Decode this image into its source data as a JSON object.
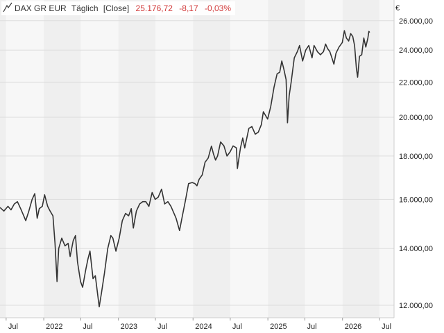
{
  "legend": {
    "name": "DAX GR EUR",
    "interval": "Täglich",
    "mode": "[Close]",
    "last": "25.176,72",
    "change": "-8,17",
    "change_pct": "-0,03%"
  },
  "colors": {
    "line": "#333333",
    "negative": "#d23b3b",
    "band_light": "#f7f7f7",
    "band_dark": "#efefef",
    "grid": "#dddddd"
  },
  "chart_data": {
    "type": "line",
    "title": "",
    "xlabel": "",
    "ylabel": "€",
    "y_scale": "log",
    "ylim": [
      11600,
      27500
    ],
    "xlim": [
      "2021-06-01",
      "2026-09-10"
    ],
    "yticks": [
      12000,
      14000,
      16000,
      18000,
      20000,
      22000,
      24000,
      26000
    ],
    "ytick_labels": [
      "12.000,00",
      "14.000,00",
      "16.000,00",
      "18.000,00",
      "20.000,00",
      "22.000,00",
      "24.000,00",
      "26.000,00"
    ],
    "xticks": [
      {
        "date": "2021-07-01",
        "label": "Jul"
      },
      {
        "date": "2022-01-01",
        "label": "2022"
      },
      {
        "date": "2022-07-01",
        "label": "Jul"
      },
      {
        "date": "2023-01-01",
        "label": "2023"
      },
      {
        "date": "2023-07-01",
        "label": "Jul"
      },
      {
        "date": "2024-01-01",
        "label": "2024"
      },
      {
        "date": "2024-07-01",
        "label": "Jul"
      },
      {
        "date": "2025-01-01",
        "label": "2025"
      },
      {
        "date": "2025-07-01",
        "label": "Jul"
      },
      {
        "date": "2026-01-01",
        "label": "2026"
      },
      {
        "date": "2026-07-01",
        "label": "Jul"
      }
    ],
    "series": [
      {
        "values": [
          [
            "2021-06-01",
            15650
          ],
          [
            "2021-06-20",
            15500
          ],
          [
            "2021-07-10",
            15700
          ],
          [
            "2021-07-25",
            15550
          ],
          [
            "2021-08-10",
            15800
          ],
          [
            "2021-08-25",
            15900
          ],
          [
            "2021-09-10",
            15600
          ],
          [
            "2021-09-25",
            15300
          ],
          [
            "2021-10-05",
            15100
          ],
          [
            "2021-10-20",
            15500
          ],
          [
            "2021-11-05",
            16000
          ],
          [
            "2021-11-18",
            16250
          ],
          [
            "2021-11-30",
            15200
          ],
          [
            "2021-12-10",
            15600
          ],
          [
            "2021-12-25",
            15700
          ],
          [
            "2022-01-05",
            16200
          ],
          [
            "2022-01-20",
            15700
          ],
          [
            "2022-02-01",
            15500
          ],
          [
            "2022-02-15",
            15300
          ],
          [
            "2022-02-25",
            14200
          ],
          [
            "2022-03-07",
            12800
          ],
          [
            "2022-03-15",
            14000
          ],
          [
            "2022-03-30",
            14400
          ],
          [
            "2022-04-15",
            14100
          ],
          [
            "2022-04-30",
            14200
          ],
          [
            "2022-05-10",
            13700
          ],
          [
            "2022-05-25",
            14300
          ],
          [
            "2022-06-05",
            14500
          ],
          [
            "2022-06-15",
            13500
          ],
          [
            "2022-06-30",
            12800
          ],
          [
            "2022-07-10",
            12600
          ],
          [
            "2022-07-25",
            13200
          ],
          [
            "2022-08-05",
            13600
          ],
          [
            "2022-08-15",
            13900
          ],
          [
            "2022-08-30",
            12900
          ],
          [
            "2022-09-10",
            13000
          ],
          [
            "2022-09-29",
            11950
          ],
          [
            "2022-10-10",
            12400
          ],
          [
            "2022-10-25",
            13100
          ],
          [
            "2022-11-10",
            14000
          ],
          [
            "2022-11-25",
            14500
          ],
          [
            "2022-12-05",
            14400
          ],
          [
            "2022-12-20",
            13900
          ],
          [
            "2023-01-05",
            14400
          ],
          [
            "2023-01-20",
            15100
          ],
          [
            "2023-02-05",
            15400
          ],
          [
            "2023-02-20",
            15300
          ],
          [
            "2023-03-05",
            15600
          ],
          [
            "2023-03-15",
            14800
          ],
          [
            "2023-03-30",
            15500
          ],
          [
            "2023-04-15",
            15800
          ],
          [
            "2023-04-30",
            15900
          ],
          [
            "2023-05-15",
            15900
          ],
          [
            "2023-05-30",
            15700
          ],
          [
            "2023-06-15",
            16300
          ],
          [
            "2023-06-30",
            16000
          ],
          [
            "2023-07-15",
            16100
          ],
          [
            "2023-07-31",
            16450
          ],
          [
            "2023-08-15",
            15800
          ],
          [
            "2023-08-31",
            15900
          ],
          [
            "2023-09-15",
            15700
          ],
          [
            "2023-09-30",
            15400
          ],
          [
            "2023-10-10",
            15200
          ],
          [
            "2023-10-27",
            14700
          ],
          [
            "2023-11-10",
            15300
          ],
          [
            "2023-11-25",
            15950
          ],
          [
            "2023-12-10",
            16700
          ],
          [
            "2023-12-28",
            16750
          ],
          [
            "2024-01-10",
            16700
          ],
          [
            "2024-01-20",
            16600
          ],
          [
            "2024-01-31",
            16900
          ],
          [
            "2024-02-15",
            17100
          ],
          [
            "2024-02-29",
            17700
          ],
          [
            "2024-03-15",
            17900
          ],
          [
            "2024-03-31",
            18490
          ],
          [
            "2024-04-10",
            18100
          ],
          [
            "2024-04-20",
            17800
          ],
          [
            "2024-04-30",
            18000
          ],
          [
            "2024-05-15",
            18700
          ],
          [
            "2024-05-31",
            18500
          ],
          [
            "2024-06-15",
            18000
          ],
          [
            "2024-06-30",
            18200
          ],
          [
            "2024-07-15",
            18500
          ],
          [
            "2024-07-31",
            18400
          ],
          [
            "2024-08-05",
            17400
          ],
          [
            "2024-08-20",
            18400
          ],
          [
            "2024-08-31",
            18900
          ],
          [
            "2024-09-10",
            18400
          ],
          [
            "2024-09-30",
            19400
          ],
          [
            "2024-10-15",
            19500
          ],
          [
            "2024-10-31",
            19100
          ],
          [
            "2024-11-15",
            19200
          ],
          [
            "2024-11-30",
            19600
          ],
          [
            "2024-12-10",
            20300
          ],
          [
            "2024-12-31",
            19900
          ],
          [
            "2025-01-15",
            20600
          ],
          [
            "2025-01-31",
            21700
          ],
          [
            "2025-02-15",
            22500
          ],
          [
            "2025-02-28",
            22600
          ],
          [
            "2025-03-10",
            23300
          ],
          [
            "2025-03-20",
            22800
          ],
          [
            "2025-03-31",
            22150
          ],
          [
            "2025-04-07",
            19700
          ],
          [
            "2025-04-15",
            21200
          ],
          [
            "2025-04-25",
            22000
          ],
          [
            "2025-05-10",
            23500
          ],
          [
            "2025-05-25",
            23900
          ],
          [
            "2025-06-05",
            24300
          ],
          [
            "2025-06-20",
            23300
          ],
          [
            "2025-07-05",
            24000
          ],
          [
            "2025-07-20",
            24300
          ],
          [
            "2025-08-05",
            23500
          ],
          [
            "2025-08-15",
            24300
          ],
          [
            "2025-08-31",
            23900
          ],
          [
            "2025-09-15",
            23700
          ],
          [
            "2025-09-30",
            23900
          ],
          [
            "2025-10-10",
            24400
          ],
          [
            "2025-10-20",
            24100
          ],
          [
            "2025-10-31",
            23900
          ],
          [
            "2025-11-10",
            23500
          ],
          [
            "2025-11-20",
            23100
          ],
          [
            "2025-11-30",
            23800
          ],
          [
            "2025-12-15",
            24200
          ],
          [
            "2025-12-31",
            24500
          ],
          [
            "2026-01-10",
            25300
          ],
          [
            "2026-01-20",
            24800
          ],
          [
            "2026-01-31",
            24600
          ],
          [
            "2026-02-10",
            25100
          ],
          [
            "2026-02-20",
            24900
          ],
          [
            "2026-03-01",
            24300
          ],
          [
            "2026-03-10",
            22800
          ],
          [
            "2026-03-16",
            22300
          ],
          [
            "2026-03-25",
            23600
          ],
          [
            "2026-04-05",
            23700
          ],
          [
            "2026-04-15",
            24800
          ],
          [
            "2026-04-25",
            24200
          ],
          [
            "2026-05-05",
            24800
          ],
          [
            "2026-05-10",
            25250
          ],
          [
            "2026-05-14",
            25176.72
          ]
        ]
      }
    ]
  }
}
